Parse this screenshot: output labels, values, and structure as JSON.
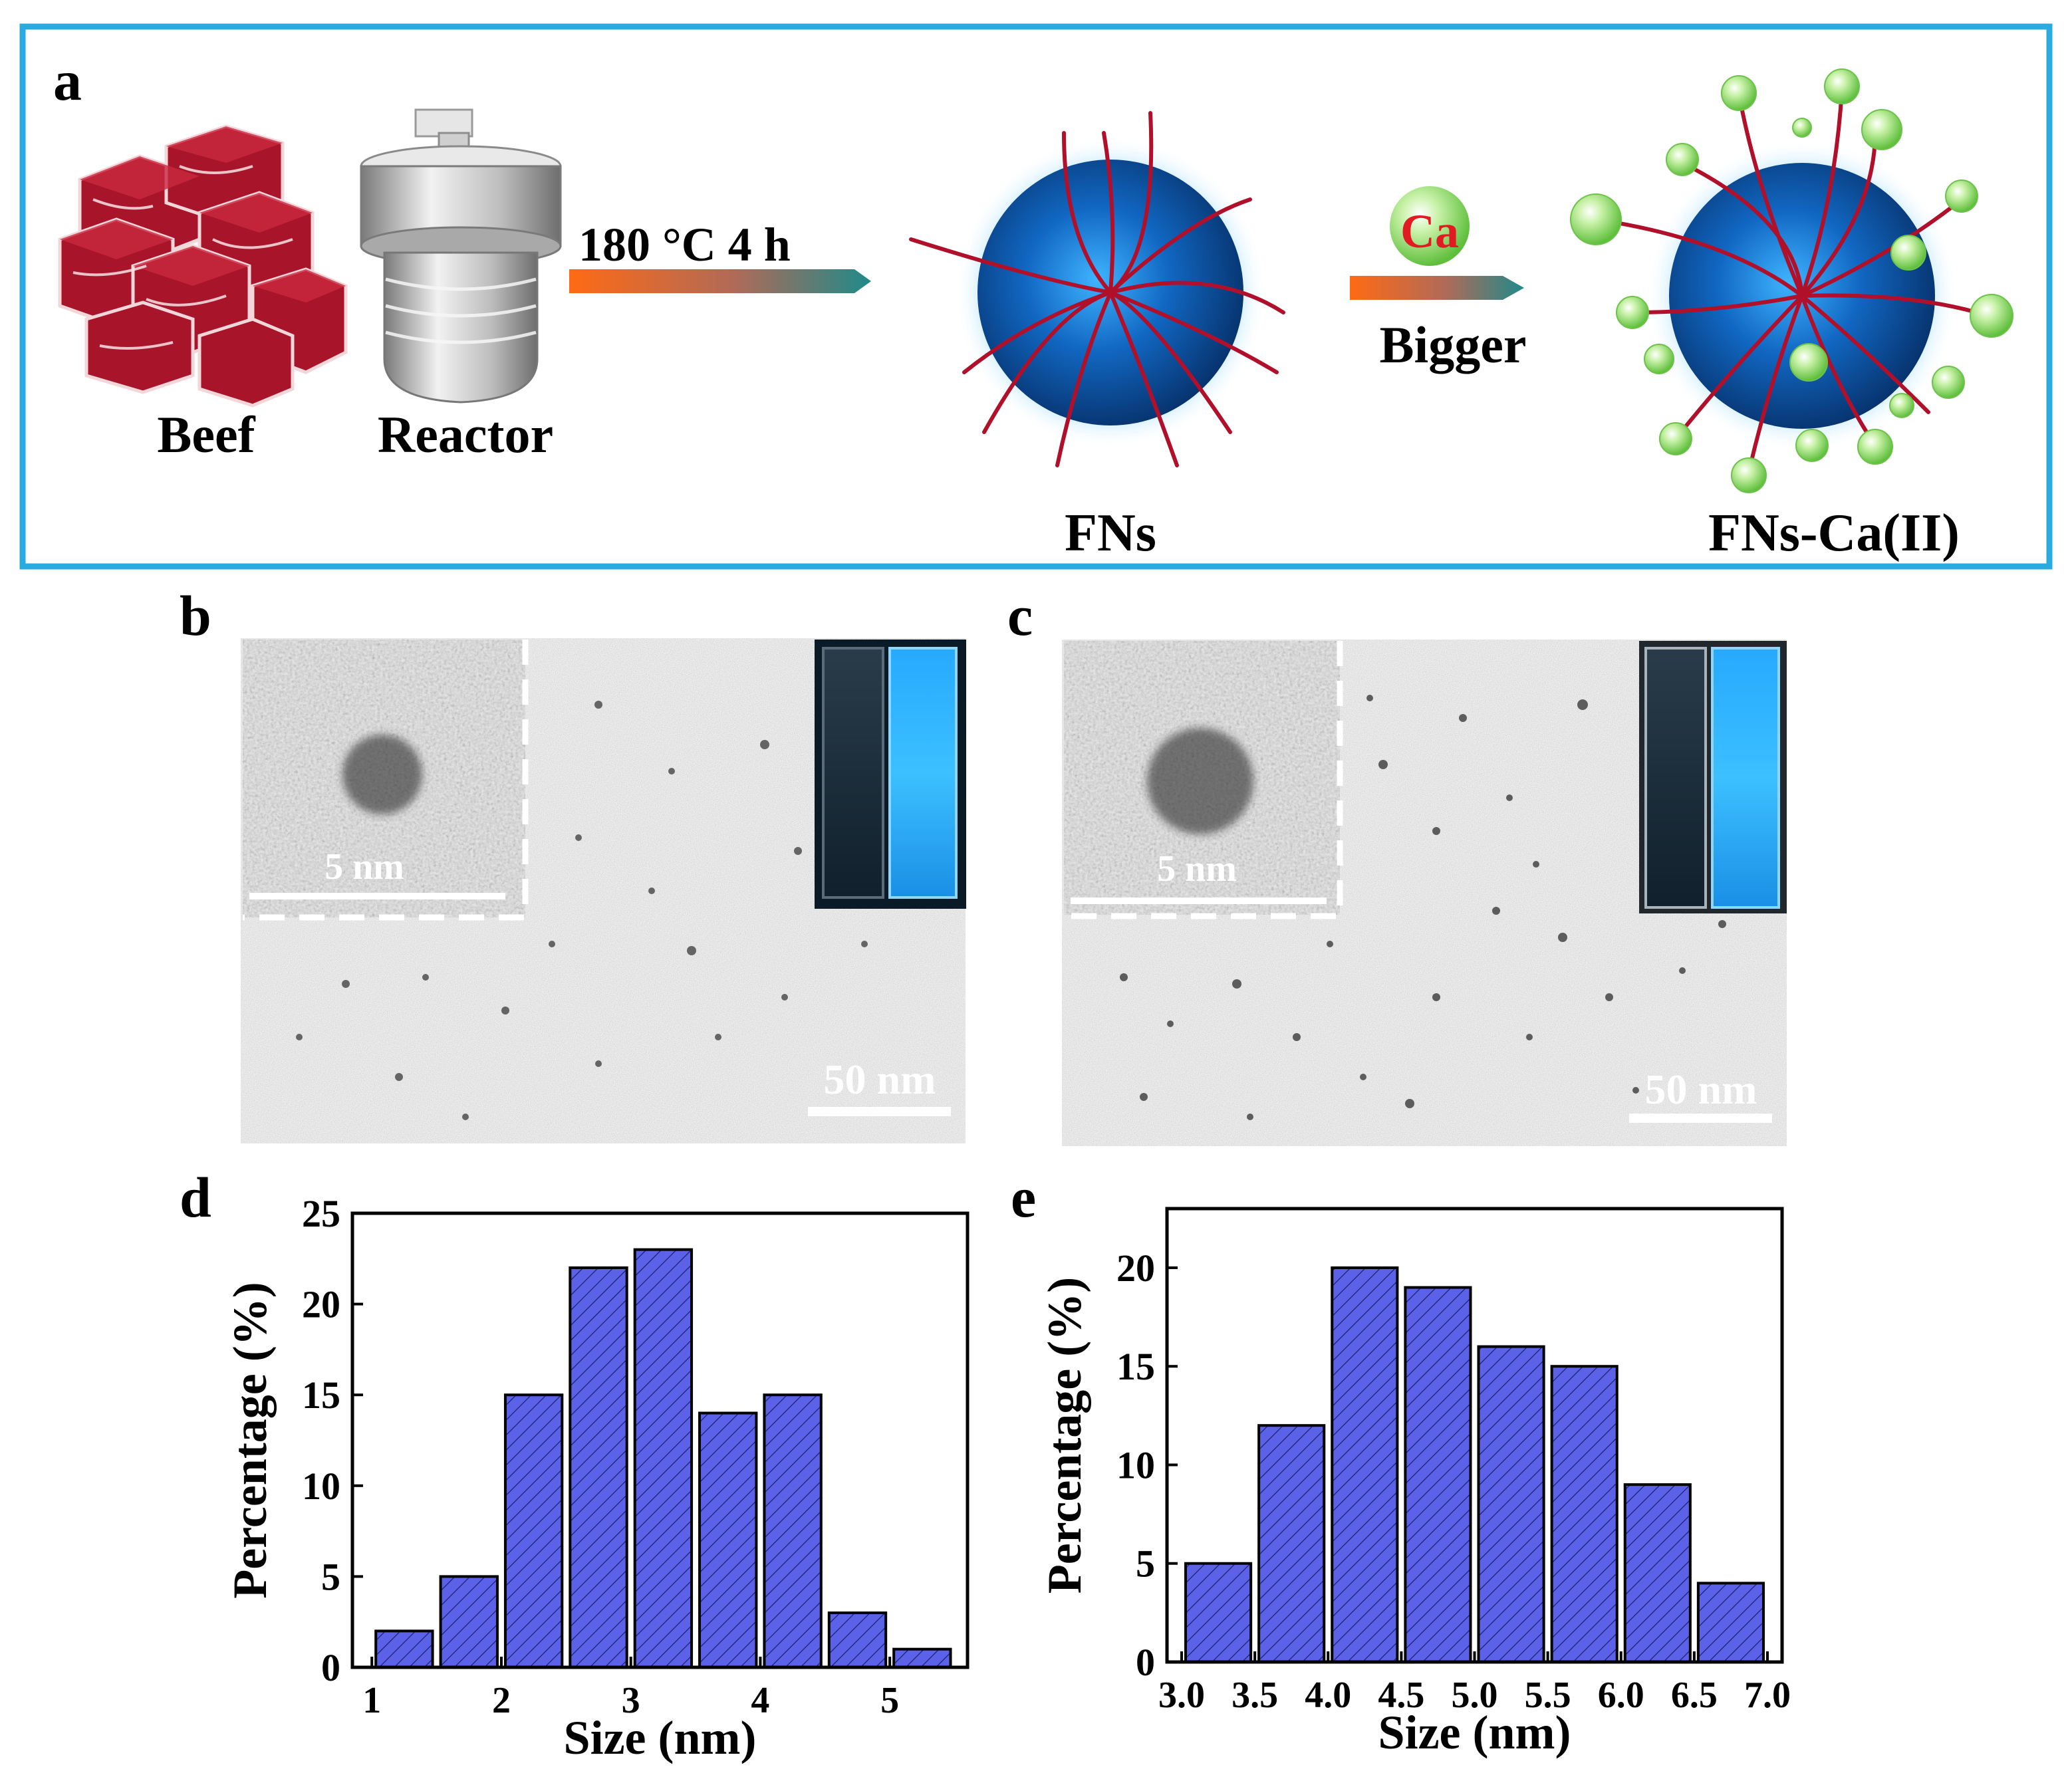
{
  "panel_a": {
    "label": "a",
    "beef_label": "Beef",
    "reactor_label": "Reactor",
    "step1_condition": "180 °C 4 h",
    "fns_label": "FNs",
    "ca_symbol": "Ca",
    "step2_label": "Bigger",
    "fns_ca_label": "FNs-Ca(II)",
    "colors": {
      "border": "#29abe2",
      "strand": "#b0102a",
      "ca_ball": "#9be07a",
      "core": "#0b4a8f"
    }
  },
  "panel_b": {
    "label": "b",
    "inset_scale": "5 nm",
    "main_scale": "50 nm"
  },
  "panel_c": {
    "label": "c",
    "inset_scale": "5 nm",
    "main_scale": "50 nm"
  },
  "chart_data": [
    {
      "panel": "d",
      "type": "bar",
      "xlabel": "Size (nm)",
      "ylabel": "Percentage (%)",
      "xlim": [
        0.85,
        5.6
      ],
      "ylim": [
        0,
        25
      ],
      "xticks": [
        1,
        2,
        3,
        4,
        5
      ],
      "yticks": [
        0,
        5,
        10,
        15,
        20,
        25
      ],
      "bin_width": 0.5,
      "bins": [
        1.0,
        1.5,
        2.0,
        2.5,
        3.0,
        3.5,
        4.0,
        4.5,
        5.0
      ],
      "values": [
        2,
        5,
        15,
        22,
        23,
        14,
        15,
        3,
        1
      ],
      "bar_color": "#5b62e8"
    },
    {
      "panel": "e",
      "type": "bar",
      "xlabel": "Size (nm)",
      "ylabel": "Percentage (%)",
      "xlim": [
        2.9,
        7.1
      ],
      "ylim": [
        0,
        23
      ],
      "xticks": [
        3.0,
        3.5,
        4.0,
        4.5,
        5.0,
        5.5,
        6.0,
        6.5,
        7.0
      ],
      "yticks": [
        0,
        5,
        10,
        15,
        20
      ],
      "bin_width": 0.5,
      "bins": [
        3.0,
        3.5,
        4.0,
        4.5,
        5.0,
        5.5,
        6.0,
        6.5
      ],
      "values": [
        5,
        12,
        20,
        19,
        16,
        15,
        9,
        4
      ],
      "bar_color": "#5b62e8"
    }
  ]
}
